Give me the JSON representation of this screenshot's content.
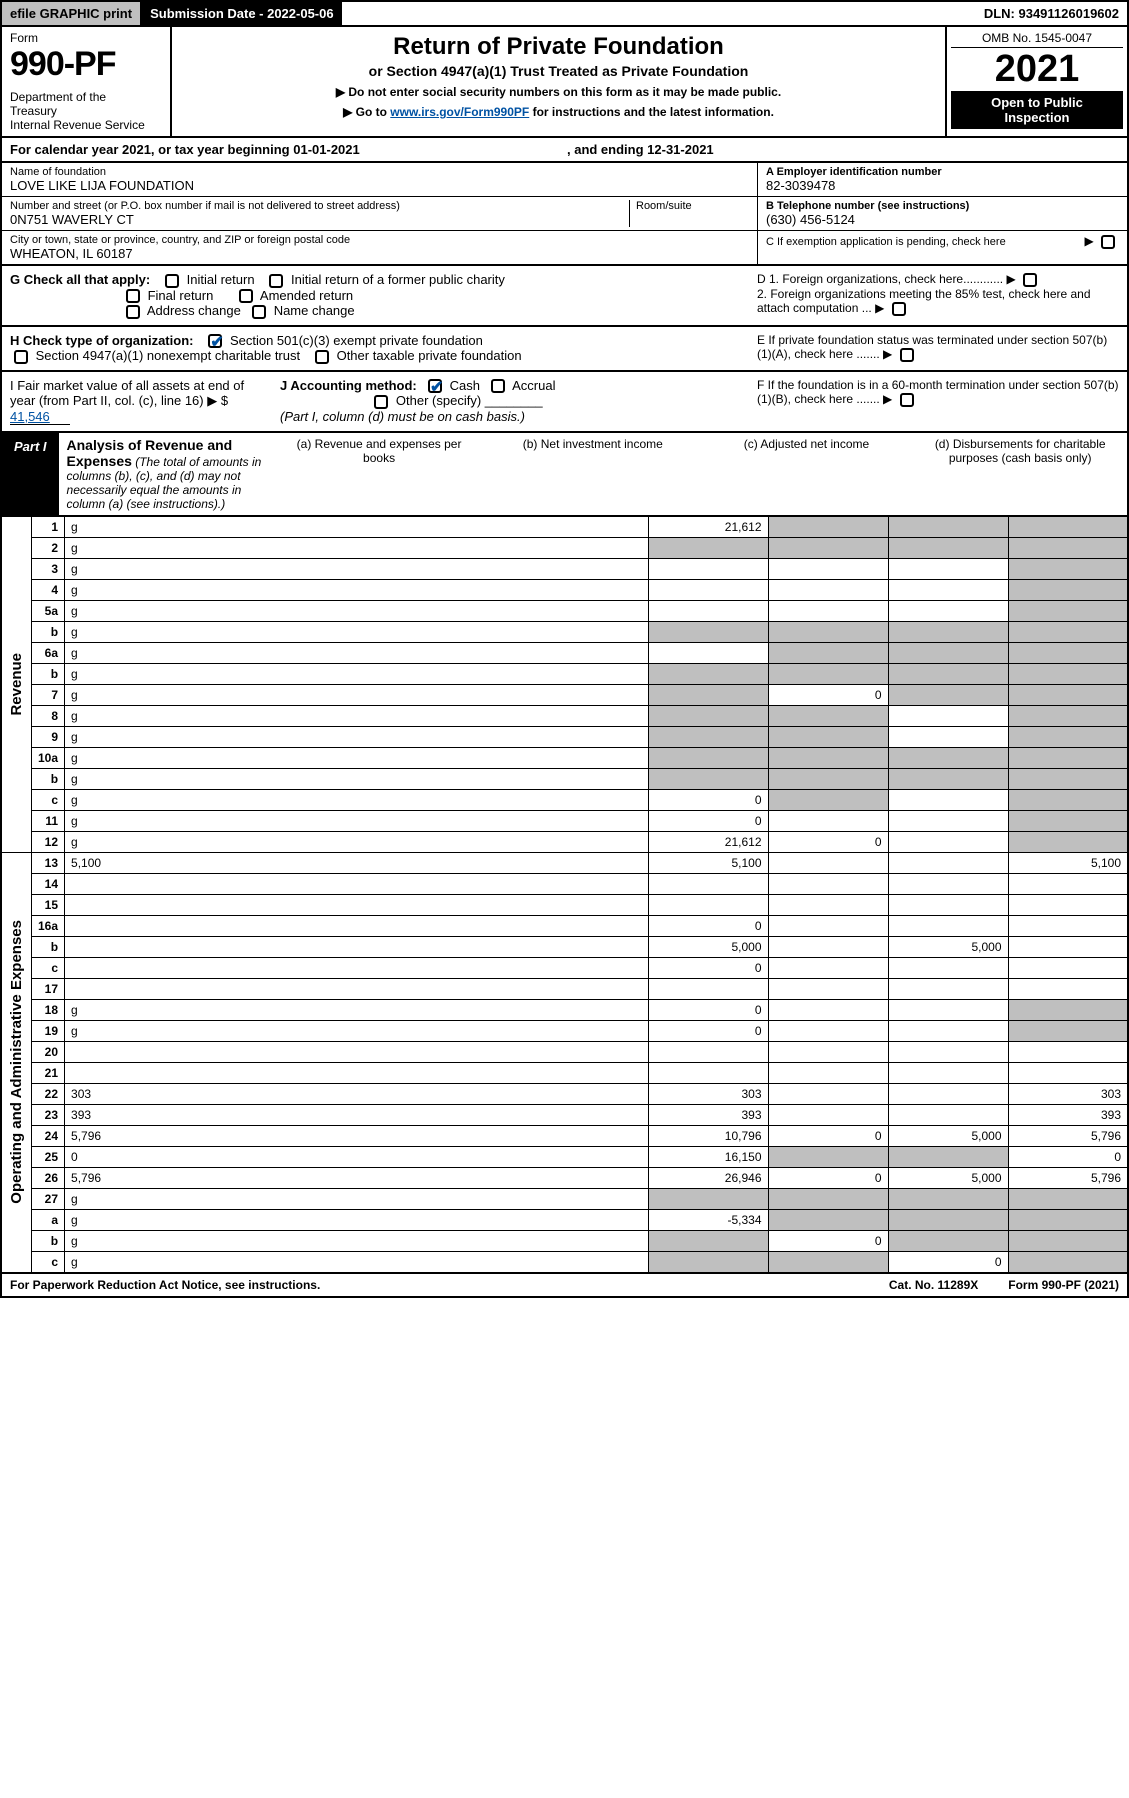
{
  "topbar": {
    "efile": "efile GRAPHIC print",
    "subdate_label": "Submission Date - 2022-05-06",
    "dln": "DLN: 93491126019602"
  },
  "header": {
    "form_word": "Form",
    "form_number": "990-PF",
    "dept": "Department of the Treasury\nInternal Revenue Service",
    "title": "Return of Private Foundation",
    "subtitle": "or Section 4947(a)(1) Trust Treated as Private Foundation",
    "instr1": "▶ Do not enter social security numbers on this form as it may be made public.",
    "instr2": "▶ Go to www.irs.gov/Form990PF for instructions and the latest information.",
    "instr2_link": "www.irs.gov/Form990PF",
    "omb": "OMB No. 1545-0047",
    "year": "2021",
    "open": "Open to Public Inspection"
  },
  "calendar": {
    "text_pre": "For calendar year 2021, or tax year beginning ",
    "begin": "01-01-2021",
    "text_mid": " , and ending ",
    "end": "12-31-2021"
  },
  "id": {
    "name_label": "Name of foundation",
    "name": "LOVE LIKE LIJA FOUNDATION",
    "addr_label": "Number and street (or P.O. box number if mail is not delivered to street address)",
    "addr": "0N751 WAVERLY CT",
    "room_label": "Room/suite",
    "city_label": "City or town, state or province, country, and ZIP or foreign postal code",
    "city": "WHEATON, IL  60187",
    "ein_label": "A Employer identification number",
    "ein": "82-3039478",
    "phone_label": "B Telephone number (see instructions)",
    "phone": "(630) 456-5124",
    "c_label": "C If exemption application is pending, check here",
    "d1": "D 1. Foreign organizations, check here............",
    "d2": "2. Foreign organizations meeting the 85% test, check here and attach computation ...",
    "e_label": "E  If private foundation status was terminated under section 507(b)(1)(A), check here .......",
    "f_label": "F  If the foundation is in a 60-month termination under section 507(b)(1)(B), check here .......",
    "g_label": "G Check all that apply:",
    "g_opts": [
      "Initial return",
      "Initial return of a former public charity",
      "Final return",
      "Amended return",
      "Address change",
      "Name change"
    ],
    "h_label": "H Check type of organization:",
    "h_opt1": "Section 501(c)(3) exempt private foundation",
    "h_opt2": "Section 4947(a)(1) nonexempt charitable trust",
    "h_opt3": "Other taxable private foundation",
    "i_label": "I Fair market value of all assets at end of year (from Part II, col. (c), line 16) ▶ $",
    "i_val": "41,546",
    "j_label": "J Accounting method:",
    "j_cash": "Cash",
    "j_accrual": "Accrual",
    "j_other": "Other (specify)",
    "j_note": "(Part I, column (d) must be on cash basis.)"
  },
  "part1": {
    "tab": "Part I",
    "title": "Analysis of Revenue and Expenses",
    "note": "(The total of amounts in columns (b), (c), and (d) may not necessarily equal the amounts in column (a) (see instructions).)",
    "cols": {
      "a": "(a)   Revenue and expenses per books",
      "b": "(b)   Net investment income",
      "c": "(c)   Adjusted net income",
      "d": "(d)   Disbursements for charitable purposes (cash basis only)"
    }
  },
  "side": {
    "revenue": "Revenue",
    "expenses": "Operating and Administrative Expenses"
  },
  "lines": [
    {
      "n": "1",
      "d": "g",
      "a": "21,612",
      "b": "g",
      "c": "g"
    },
    {
      "n": "2",
      "d": "g",
      "a": "g",
      "b": "g",
      "c": "g"
    },
    {
      "n": "3",
      "d": "g",
      "a": "",
      "b": "",
      "c": ""
    },
    {
      "n": "4",
      "d": "g",
      "a": "",
      "b": "",
      "c": ""
    },
    {
      "n": "5a",
      "d": "g",
      "a": "",
      "b": "",
      "c": ""
    },
    {
      "n": "b",
      "d": "g",
      "a": "g",
      "b": "g",
      "c": "g"
    },
    {
      "n": "6a",
      "d": "g",
      "a": "",
      "b": "g",
      "c": "g"
    },
    {
      "n": "b",
      "d": "g",
      "a": "g",
      "b": "g",
      "c": "g"
    },
    {
      "n": "7",
      "d": "g",
      "a": "g",
      "b": "0",
      "c": "g"
    },
    {
      "n": "8",
      "d": "g",
      "a": "g",
      "b": "g",
      "c": ""
    },
    {
      "n": "9",
      "d": "g",
      "a": "g",
      "b": "g",
      "c": ""
    },
    {
      "n": "10a",
      "d": "g",
      "a": "g",
      "b": "g",
      "c": "g"
    },
    {
      "n": "b",
      "d": "g",
      "a": "g",
      "b": "g",
      "c": "g"
    },
    {
      "n": "c",
      "d": "g",
      "a": "0",
      "b": "g",
      "c": ""
    },
    {
      "n": "11",
      "d": "g",
      "a": "0",
      "b": "",
      "c": ""
    },
    {
      "n": "12",
      "d": "g",
      "a": "21,612",
      "b": "0",
      "c": ""
    },
    {
      "n": "13",
      "d": "5,100",
      "a": "5,100",
      "b": "",
      "c": ""
    },
    {
      "n": "14",
      "d": "",
      "a": "",
      "b": "",
      "c": ""
    },
    {
      "n": "15",
      "d": "",
      "a": "",
      "b": "",
      "c": ""
    },
    {
      "n": "16a",
      "d": "",
      "a": "0",
      "b": "",
      "c": ""
    },
    {
      "n": "b",
      "d": "",
      "a": "5,000",
      "b": "",
      "c": "5,000"
    },
    {
      "n": "c",
      "d": "",
      "a": "0",
      "b": "",
      "c": ""
    },
    {
      "n": "17",
      "d": "",
      "a": "",
      "b": "",
      "c": ""
    },
    {
      "n": "18",
      "d": "g",
      "a": "0",
      "b": "",
      "c": ""
    },
    {
      "n": "19",
      "d": "g",
      "a": "0",
      "b": "",
      "c": ""
    },
    {
      "n": "20",
      "d": "",
      "a": "",
      "b": "",
      "c": ""
    },
    {
      "n": "21",
      "d": "",
      "a": "",
      "b": "",
      "c": ""
    },
    {
      "n": "22",
      "d": "303",
      "a": "303",
      "b": "",
      "c": ""
    },
    {
      "n": "23",
      "d": "393",
      "a": "393",
      "b": "",
      "c": ""
    },
    {
      "n": "24",
      "d": "5,796",
      "a": "10,796",
      "b": "0",
      "c": "5,000"
    },
    {
      "n": "25",
      "d": "0",
      "a": "16,150",
      "b": "g",
      "c": "g"
    },
    {
      "n": "26",
      "d": "5,796",
      "a": "26,946",
      "b": "0",
      "c": "5,000"
    },
    {
      "n": "27",
      "d": "g",
      "a": "g",
      "b": "g",
      "c": "g"
    },
    {
      "n": "a",
      "d": "g",
      "a": "-5,334",
      "b": "g",
      "c": "g"
    },
    {
      "n": "b",
      "d": "g",
      "a": "g",
      "b": "0",
      "c": "g"
    },
    {
      "n": "c",
      "d": "g",
      "a": "g",
      "b": "g",
      "c": "0"
    }
  ],
  "footer": {
    "left": "For Paperwork Reduction Act Notice, see instructions.",
    "mid": "Cat. No. 11289X",
    "right": "Form 990-PF (2021)"
  },
  "colors": {
    "grey": "#bfbfbf",
    "link": "#0052a3"
  }
}
